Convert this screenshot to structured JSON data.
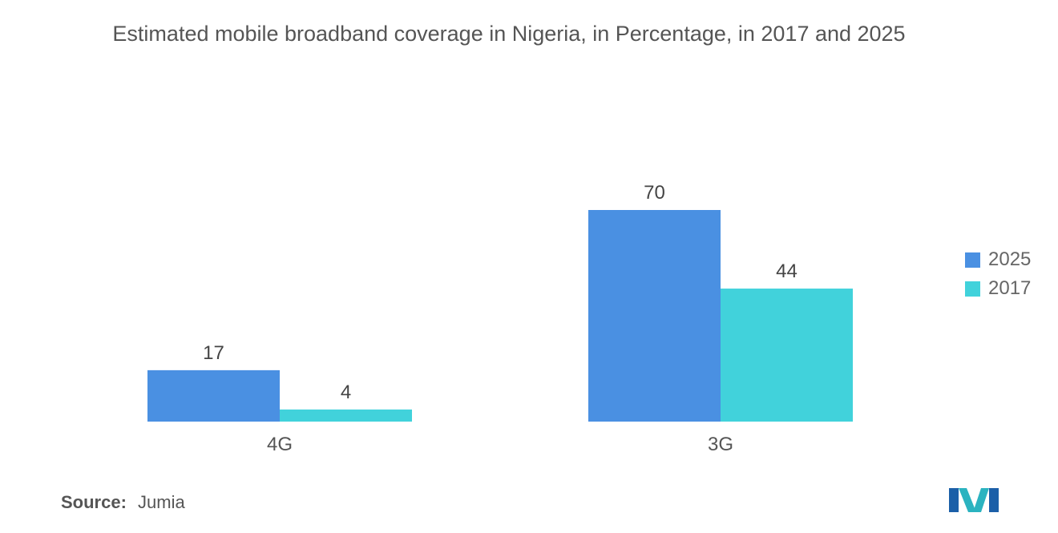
{
  "chart_data": {
    "type": "bar",
    "title": "Estimated mobile broadband coverage in Nigeria, in Percentage, in 2017 and 2025",
    "categories": [
      "4G",
      "3G"
    ],
    "series": [
      {
        "name": "2025",
        "values": [
          17,
          70
        ],
        "color": "#4a90e2"
      },
      {
        "name": "2017",
        "values": [
          4,
          44
        ],
        "color": "#41d2db"
      }
    ],
    "data_labels": true,
    "ylim": [
      0,
      70
    ],
    "xlabel": "",
    "ylabel": "",
    "grid": false,
    "legend_position": "right"
  },
  "source": {
    "label": "Source:",
    "value": "Jumia"
  },
  "logo_icon": "mordor-intelligence-logo"
}
